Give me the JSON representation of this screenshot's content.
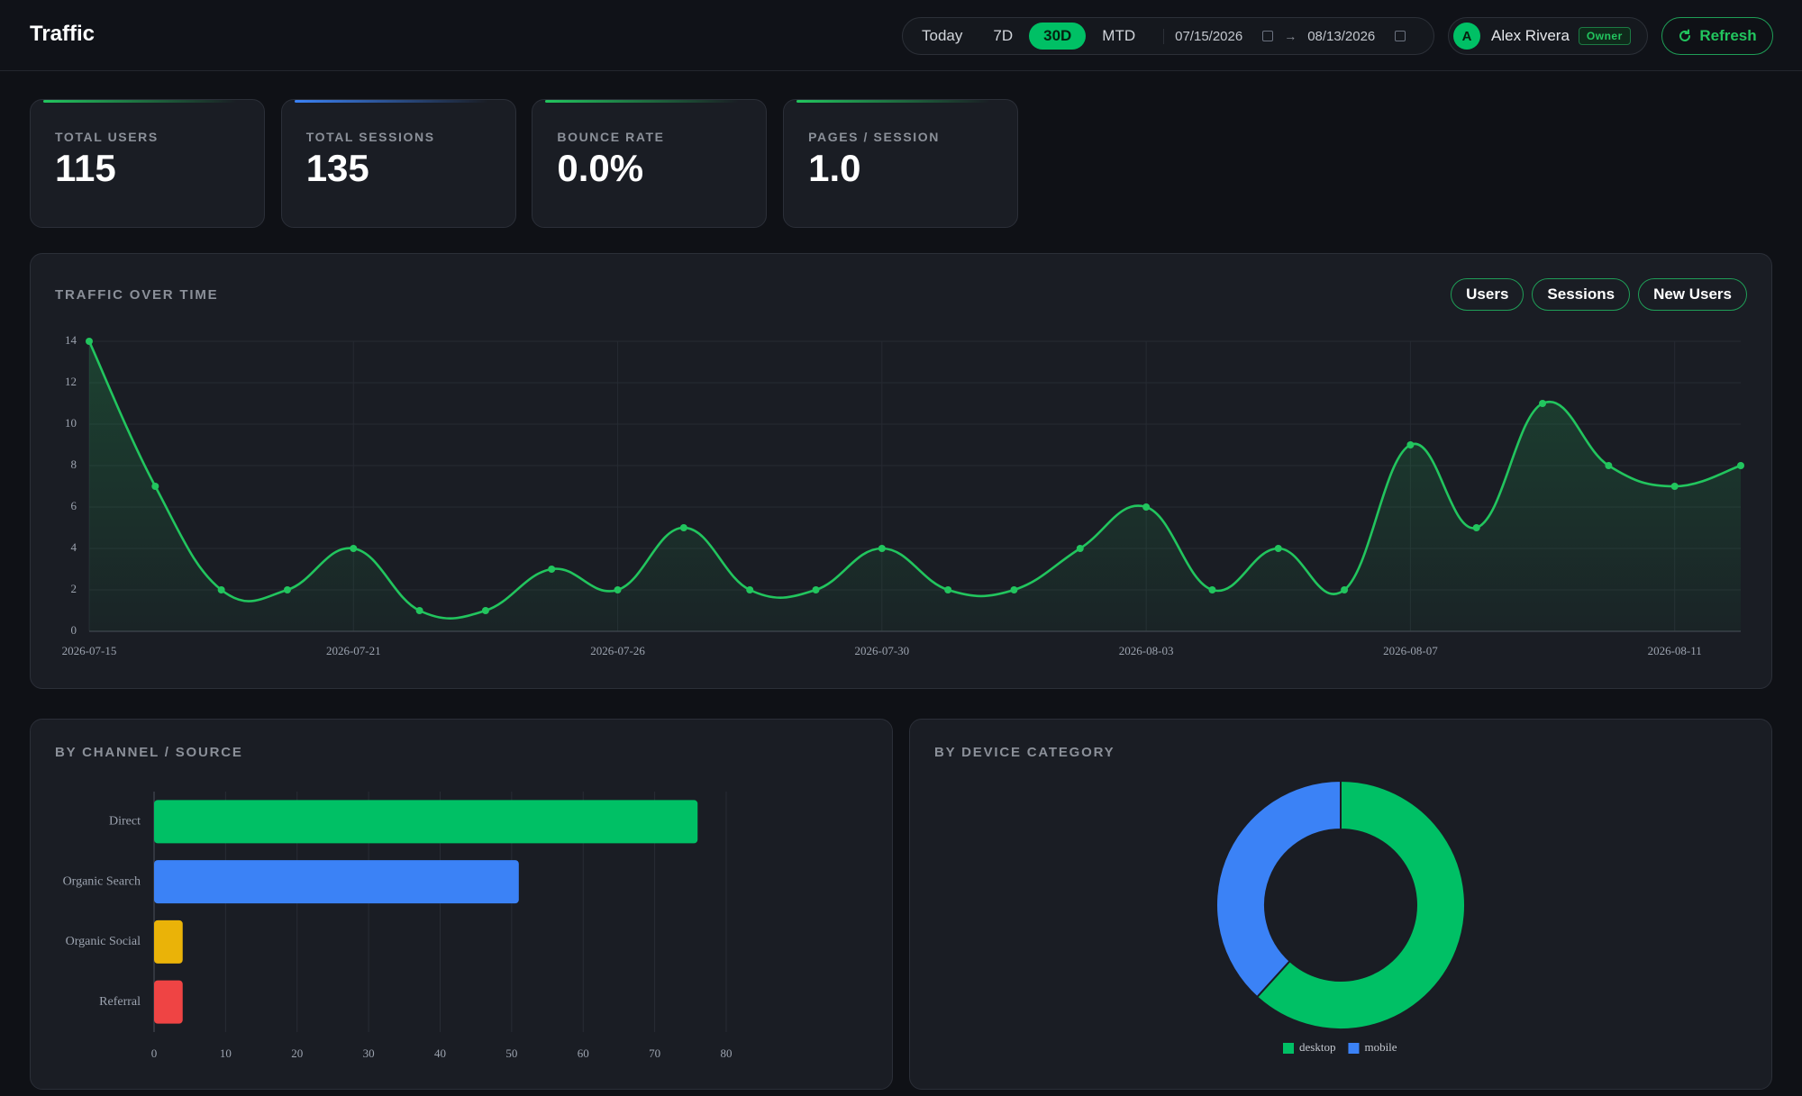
{
  "header": {
    "title": "Traffic",
    "ranges": [
      "Today",
      "7D",
      "30D",
      "MTD"
    ],
    "active_range": 2,
    "date_from": "07/15/2026",
    "date_to": "08/13/2026",
    "user": {
      "initial": "A",
      "name": "Alex Rivera",
      "role": "Owner"
    },
    "refresh": "Refresh"
  },
  "kpis": [
    {
      "label": "TOTAL USERS",
      "value": "115",
      "color": "#22c55e"
    },
    {
      "label": "TOTAL SESSIONS",
      "value": "135",
      "color": "#3b82f6"
    },
    {
      "label": "BOUNCE RATE",
      "value": "0.0%",
      "color": "#22c55e"
    },
    {
      "label": "PAGES / SESSION",
      "value": "1.0",
      "color": "#22c55e"
    }
  ],
  "chart_data": [
    {
      "type": "line",
      "title": "TRAFFIC OVER TIME",
      "toggles": [
        "Users",
        "Sessions",
        "New Users"
      ],
      "categories": [
        "2026-07-15",
        null,
        null,
        null,
        "2026-07-21",
        null,
        null,
        null,
        "2026-07-26",
        null,
        null,
        null,
        "2026-07-30",
        null,
        null,
        null,
        "2026-08-03",
        null,
        null,
        null,
        "2026-08-07",
        null,
        null,
        null,
        "2026-08-11",
        null
      ],
      "series": [
        {
          "color": "#22c55e",
          "values": [
            14,
            7,
            2,
            2,
            4,
            1,
            1,
            3,
            2,
            5,
            2,
            2,
            4,
            2,
            2,
            4,
            6,
            2,
            4,
            2,
            9,
            5,
            11,
            8,
            7,
            8
          ]
        }
      ],
      "ylim": [
        0,
        14
      ],
      "yticks": [
        0,
        2,
        4,
        6,
        8,
        10,
        12,
        14
      ],
      "grid": true
    },
    {
      "type": "bar",
      "orientation": "horizontal",
      "title": "BY CHANNEL / SOURCE",
      "categories": [
        "Direct",
        "Organic Search",
        "Organic Social",
        "Referral"
      ],
      "values": [
        76,
        51,
        4,
        4
      ],
      "colors": [
        "#00c065",
        "#3b82f6",
        "#eab308",
        "#ef4444"
      ],
      "xlim": [
        0,
        80
      ],
      "xticks": [
        0,
        10,
        20,
        30,
        40,
        50,
        60,
        70,
        80
      ],
      "grid": true
    },
    {
      "type": "pie",
      "donut": true,
      "title": "BY DEVICE CATEGORY",
      "categories": [
        "desktop",
        "mobile"
      ],
      "values": [
        71,
        44
      ],
      "colors": [
        "#00c065",
        "#3b82f6"
      ],
      "legend": "bottom"
    }
  ]
}
